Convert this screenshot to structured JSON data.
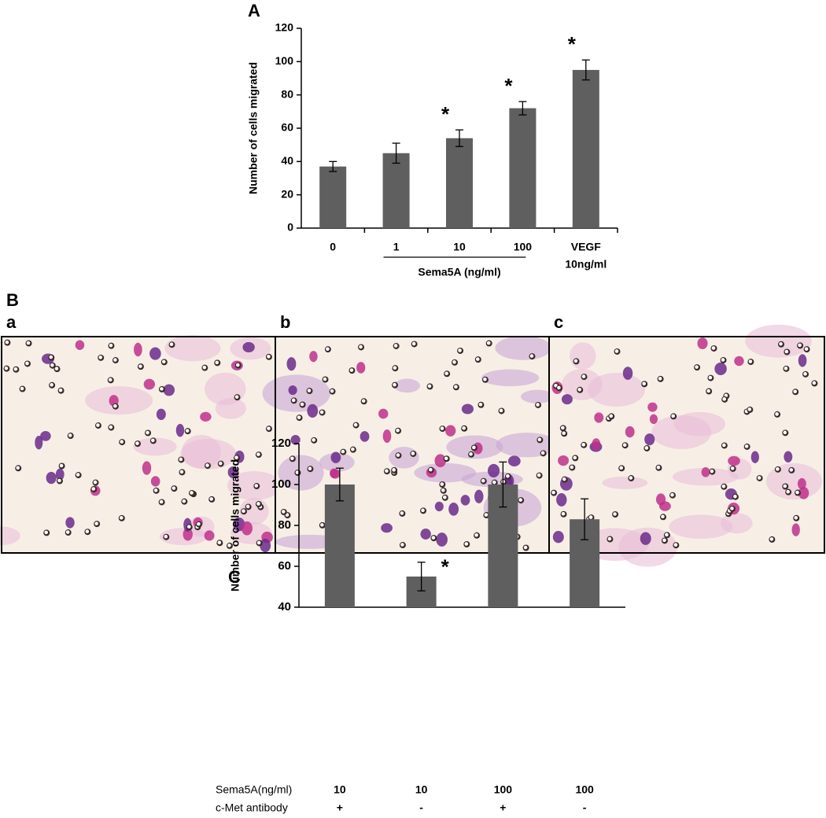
{
  "chart_data": [
    {
      "type": "bar",
      "panel": "A",
      "ylabel": "Number of cells migrated",
      "categories": [
        "0",
        "1",
        "10",
        "100",
        [
          "VEGF",
          "10ng/ml"
        ]
      ],
      "values": [
        37,
        45,
        54,
        72,
        95
      ],
      "errors": [
        3,
        6,
        5,
        4,
        6
      ],
      "color": "#5f5f5f",
      "ylim": [
        0,
        120
      ],
      "yticks": [
        0,
        20,
        40,
        60,
        80,
        100,
        120
      ],
      "group": {
        "label": "Sema5A (ng/ml)",
        "categories": [
          1,
          3
        ]
      },
      "annotations": [
        {
          "text": "*",
          "category": 2
        },
        {
          "text": "*",
          "category": 3
        },
        {
          "text": "*",
          "category": 4
        }
      ]
    },
    {
      "type": "bar",
      "panel": "C",
      "ylabel": "Number of cells migrated",
      "category_rows": [
        "Sema5A(ng/ml)",
        "c-Met antibody"
      ],
      "categories": [
        [
          "10",
          "+"
        ],
        [
          "10",
          "-"
        ],
        [
          "100",
          "+"
        ],
        [
          "100",
          "-"
        ]
      ],
      "values": [
        100,
        55,
        100,
        83
      ],
      "errors": [
        8,
        7,
        11,
        10
      ],
      "color": "#5f5f5f",
      "ylim": [
        40,
        120
      ],
      "yticks": [
        40,
        60,
        80,
        100,
        120
      ],
      "annotations": [
        {
          "text": "*",
          "category": 1
        }
      ]
    }
  ],
  "images": {
    "panel": "B",
    "labels": [
      "a",
      "b",
      "c"
    ]
  }
}
